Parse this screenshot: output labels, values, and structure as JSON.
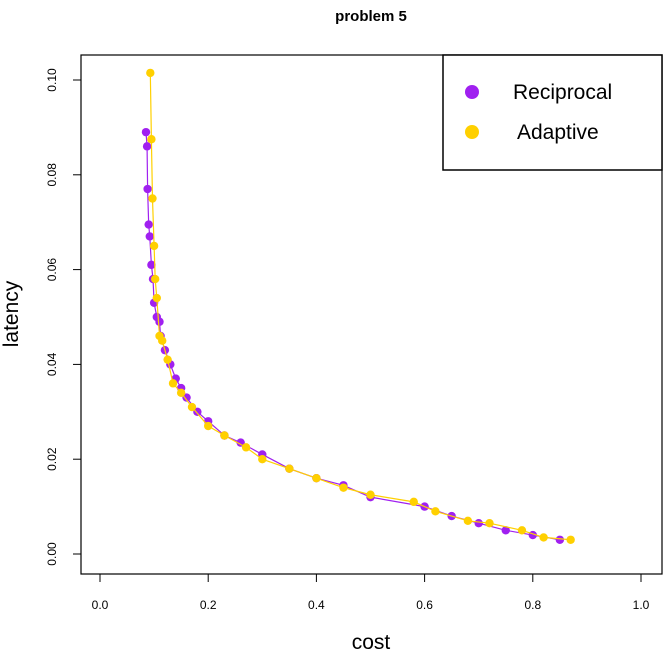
{
  "chart_data": {
    "type": "scatter",
    "title": "problem 5",
    "xlabel": "cost",
    "ylabel": "latency",
    "xlim": [
      0.0,
      1.0
    ],
    "ylim": [
      0.0,
      0.1
    ],
    "x_ticks": [
      "0.0",
      "0.2",
      "0.4",
      "0.6",
      "0.8",
      "1.0"
    ],
    "y_ticks": [
      "0.00",
      "0.02",
      "0.04",
      "0.06",
      "0.08",
      "0.10"
    ],
    "grid": false,
    "legend_position": "top-right",
    "series": [
      {
        "name": "Reciprocal",
        "color": "#A020F0",
        "points": [
          [
            0.085,
            0.089
          ],
          [
            0.087,
            0.086
          ],
          [
            0.088,
            0.077
          ],
          [
            0.09,
            0.0695
          ],
          [
            0.092,
            0.067
          ],
          [
            0.095,
            0.061
          ],
          [
            0.098,
            0.058
          ],
          [
            0.1,
            0.053
          ],
          [
            0.105,
            0.05
          ],
          [
            0.11,
            0.049
          ],
          [
            0.112,
            0.046
          ],
          [
            0.12,
            0.043
          ],
          [
            0.13,
            0.04
          ],
          [
            0.14,
            0.037
          ],
          [
            0.15,
            0.035
          ],
          [
            0.16,
            0.033
          ],
          [
            0.18,
            0.03
          ],
          [
            0.2,
            0.028
          ],
          [
            0.23,
            0.025
          ],
          [
            0.26,
            0.0235
          ],
          [
            0.3,
            0.021
          ],
          [
            0.35,
            0.018
          ],
          [
            0.4,
            0.016
          ],
          [
            0.45,
            0.0145
          ],
          [
            0.5,
            0.012
          ],
          [
            0.6,
            0.01
          ],
          [
            0.65,
            0.008
          ],
          [
            0.7,
            0.0065
          ],
          [
            0.75,
            0.005
          ],
          [
            0.8,
            0.004
          ],
          [
            0.85,
            0.003
          ]
        ]
      },
      {
        "name": "Adaptive",
        "color": "#FFD000",
        "points": [
          [
            0.093,
            0.1015
          ],
          [
            0.095,
            0.0875
          ],
          [
            0.097,
            0.075
          ],
          [
            0.1,
            0.065
          ],
          [
            0.102,
            0.058
          ],
          [
            0.105,
            0.054
          ],
          [
            0.11,
            0.046
          ],
          [
            0.115,
            0.045
          ],
          [
            0.125,
            0.041
          ],
          [
            0.135,
            0.036
          ],
          [
            0.15,
            0.034
          ],
          [
            0.17,
            0.031
          ],
          [
            0.2,
            0.027
          ],
          [
            0.23,
            0.025
          ],
          [
            0.27,
            0.0225
          ],
          [
            0.3,
            0.02
          ],
          [
            0.35,
            0.018
          ],
          [
            0.4,
            0.016
          ],
          [
            0.45,
            0.014
          ],
          [
            0.5,
            0.0125
          ],
          [
            0.58,
            0.011
          ],
          [
            0.62,
            0.009
          ],
          [
            0.68,
            0.007
          ],
          [
            0.72,
            0.0065
          ],
          [
            0.78,
            0.005
          ],
          [
            0.82,
            0.0035
          ],
          [
            0.87,
            0.003
          ]
        ]
      }
    ]
  }
}
